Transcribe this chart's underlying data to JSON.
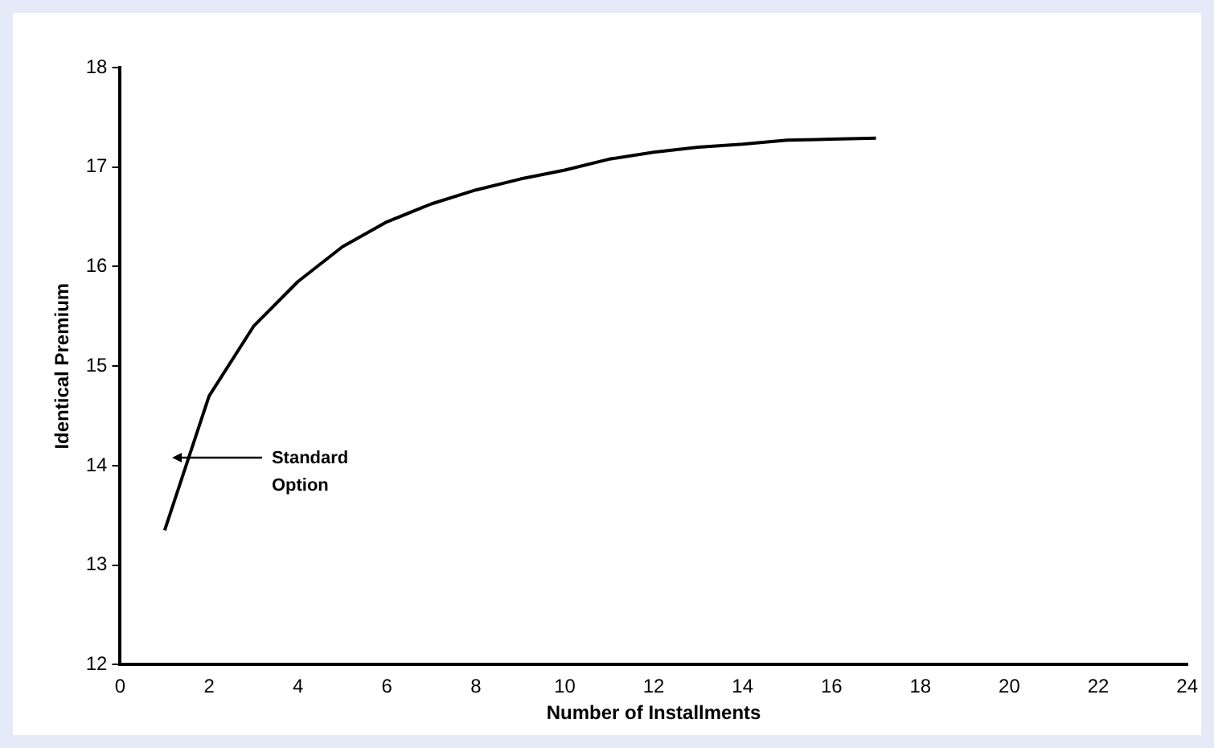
{
  "chart_data": {
    "type": "line",
    "xlabel": "Number of Installments",
    "ylabel": "Identical Premium",
    "x": [
      1,
      2,
      3,
      4,
      5,
      6,
      7,
      8,
      9,
      10,
      11,
      12,
      13,
      14,
      15,
      16,
      17
    ],
    "series": [
      {
        "color": "#000000",
        "values": [
          13.35,
          14.7,
          15.4,
          15.85,
          16.2,
          16.45,
          16.63,
          16.77,
          16.88,
          16.97,
          17.08,
          17.15,
          17.2,
          17.23,
          17.27,
          17.28,
          17.29
        ]
      }
    ],
    "xlim": [
      0,
      24
    ],
    "xticks": [
      0,
      2,
      4,
      6,
      8,
      10,
      12,
      14,
      16,
      18,
      20,
      22,
      24
    ],
    "ylim": [
      12,
      18
    ],
    "yticks": [
      12,
      13,
      14,
      15,
      16,
      17,
      18
    ],
    "grid": false,
    "legend": false,
    "marker": "none",
    "line_style": "solid",
    "annotations": [
      "Standard\nOption"
    ]
  }
}
